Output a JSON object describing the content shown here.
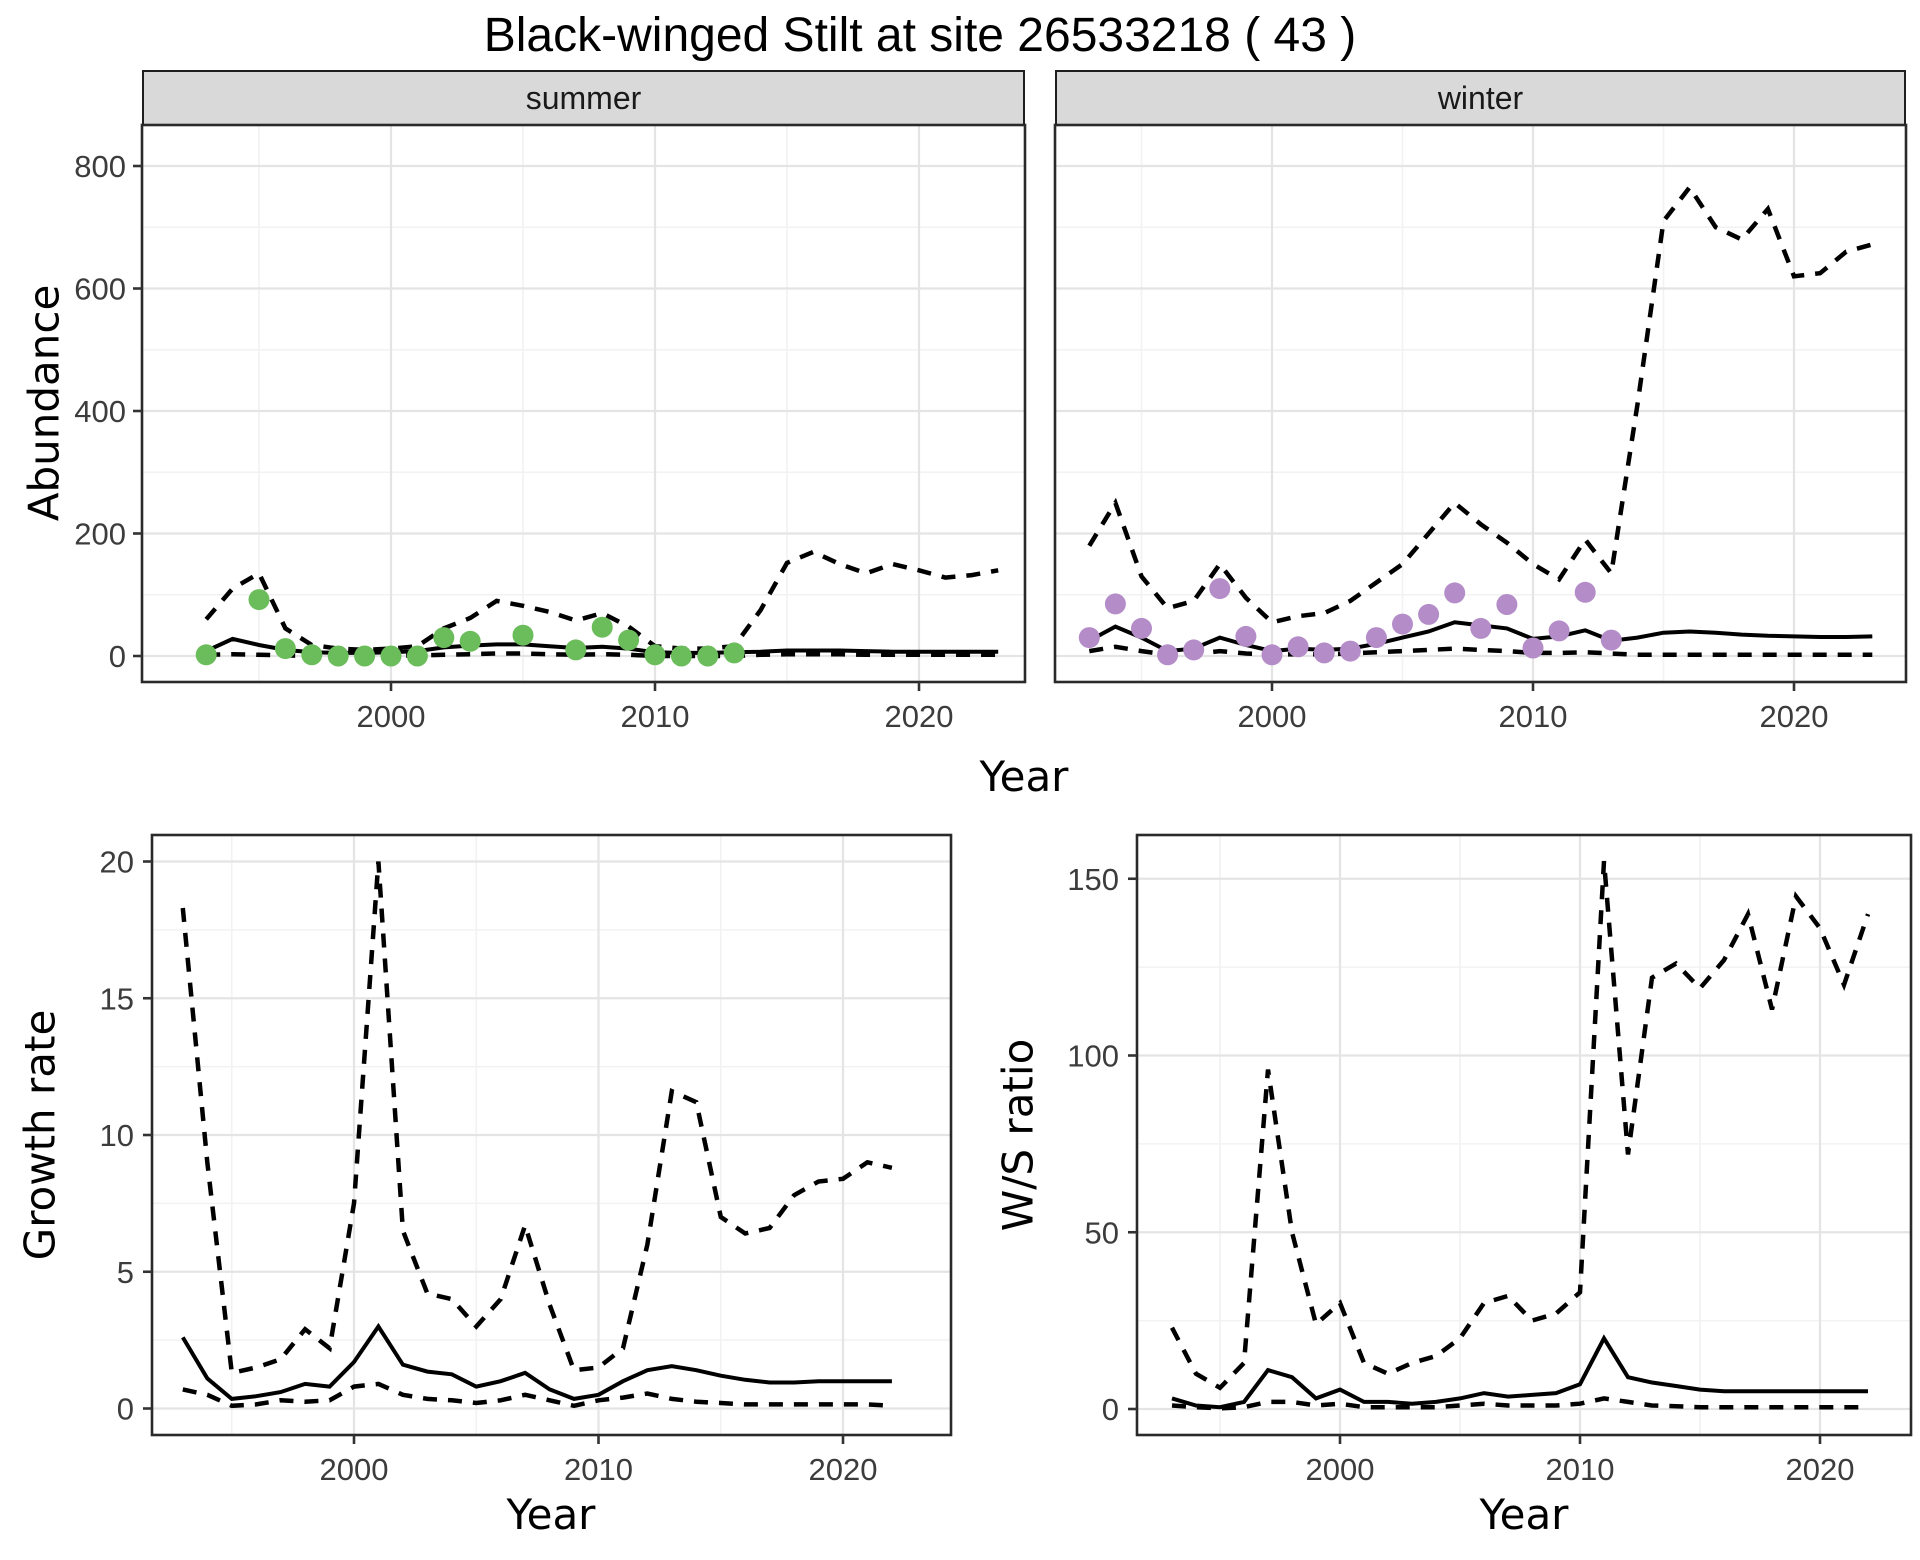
{
  "page": {
    "title": "Black-winged Stilt at site 26533218 ( 43 )"
  },
  "colors": {
    "summer_points": "#6BBD5B",
    "winter_points": "#B48CC8",
    "line": "#000000",
    "strip_bg": "#D9D9D9",
    "grid_major": "#E4E4E4",
    "grid_minor": "#F2F2F2",
    "panel_border": "#2A2A2A",
    "tick_text": "#3C3C3C"
  },
  "top_row": {
    "ylabel": "Abundance",
    "xlabel": "Year",
    "facets": [
      {
        "label": "summer"
      },
      {
        "label": "winter"
      }
    ]
  },
  "bottom_row": {
    "growth": {
      "ylabel": "Growth rate",
      "xlabel": "Year"
    },
    "ws": {
      "ylabel": "W/S ratio",
      "xlabel": "Year"
    }
  },
  "chart_data": [
    {
      "id": "summer",
      "type": "line",
      "facet": "summer",
      "xlabel": "Year",
      "ylabel": "Abundance",
      "x_ticks": [
        2000,
        2010,
        2020
      ],
      "y_ticks": [
        0,
        200,
        400,
        600,
        800
      ],
      "xlim": [
        1991,
        2024.5
      ],
      "ylim": [
        -40,
        880
      ],
      "x": [
        1993,
        1994,
        1995,
        1996,
        1997,
        1998,
        1999,
        2000,
        2001,
        2002,
        2003,
        2004,
        2005,
        2006,
        2007,
        2008,
        2009,
        2010,
        2011,
        2012,
        2013,
        2014,
        2015,
        2016,
        2017,
        2018,
        2019,
        2020,
        2021,
        2022,
        2023
      ],
      "series": [
        {
          "name": "median",
          "style": "solid",
          "values": [
            8,
            28,
            18,
            10,
            6,
            5,
            5,
            6,
            8,
            14,
            17,
            19,
            19,
            16,
            13,
            15,
            12,
            6,
            5,
            5,
            6,
            7,
            9,
            9,
            9,
            8,
            7,
            7,
            7,
            7,
            7
          ]
        },
        {
          "name": "ci_upper",
          "style": "dashed",
          "values": [
            60,
            110,
            135,
            45,
            18,
            12,
            10,
            12,
            16,
            45,
            62,
            90,
            82,
            72,
            58,
            70,
            48,
            16,
            12,
            12,
            16,
            75,
            152,
            170,
            150,
            135,
            150,
            140,
            128,
            132,
            140
          ]
        },
        {
          "name": "ci_lower",
          "style": "dashed",
          "values": [
            2,
            3,
            2,
            1,
            0,
            0,
            0,
            0,
            1,
            2,
            3,
            4,
            4,
            3,
            2,
            3,
            2,
            0,
            0,
            0,
            0,
            2,
            3,
            3,
            3,
            2,
            2,
            2,
            2,
            2,
            2
          ]
        }
      ],
      "points": {
        "name": "observed_counts",
        "color": "#6BBD5B",
        "x": [
          1993,
          1995,
          1996,
          1997,
          1998,
          1999,
          2000,
          2001,
          2002,
          2003,
          2005,
          2007,
          2008,
          2009,
          2010,
          2011,
          2012,
          2013
        ],
        "y": [
          2,
          92,
          12,
          2,
          0,
          0,
          0,
          0,
          30,
          24,
          34,
          10,
          47,
          26,
          2,
          0,
          0,
          5
        ]
      }
    },
    {
      "id": "winter",
      "type": "line",
      "facet": "winter",
      "xlabel": "Year",
      "ylabel": "Abundance",
      "x_ticks": [
        2000,
        2010,
        2020
      ],
      "y_ticks": [
        0,
        200,
        400,
        600,
        800
      ],
      "xlim": [
        1991.7,
        2024.3
      ],
      "ylim": [
        -40,
        880
      ],
      "x": [
        1993,
        1994,
        1995,
        1996,
        1997,
        1998,
        1999,
        2000,
        2001,
        2002,
        2003,
        2004,
        2005,
        2006,
        2007,
        2008,
        2009,
        2010,
        2011,
        2012,
        2013,
        2014,
        2015,
        2016,
        2017,
        2018,
        2019,
        2020,
        2021,
        2022,
        2023
      ],
      "series": [
        {
          "name": "median",
          "style": "solid",
          "values": [
            25,
            48,
            30,
            8,
            12,
            30,
            18,
            8,
            12,
            10,
            12,
            20,
            30,
            40,
            55,
            50,
            45,
            28,
            32,
            42,
            25,
            30,
            38,
            40,
            38,
            35,
            33,
            32,
            31,
            31,
            32
          ]
        },
        {
          "name": "ci_upper",
          "style": "dashed",
          "values": [
            180,
            250,
            130,
            78,
            90,
            150,
            95,
            55,
            65,
            70,
            90,
            120,
            150,
            200,
            250,
            215,
            185,
            150,
            125,
            190,
            135,
            410,
            710,
            765,
            700,
            680,
            730,
            620,
            625,
            660,
            672
          ]
        },
        {
          "name": "ci_lower",
          "style": "dashed",
          "values": [
            8,
            15,
            8,
            2,
            3,
            8,
            4,
            2,
            3,
            3,
            4,
            6,
            8,
            10,
            12,
            10,
            8,
            5,
            5,
            6,
            4,
            2,
            2,
            2,
            2,
            2,
            2,
            2,
            2,
            2,
            2
          ]
        }
      ],
      "points": {
        "name": "observed_counts",
        "color": "#B48CC8",
        "x": [
          1993,
          1994,
          1995,
          1996,
          1997,
          1998,
          1999,
          2000,
          2001,
          2002,
          2003,
          2004,
          2005,
          2006,
          2007,
          2008,
          2009,
          2010,
          2011,
          2012,
          2013
        ],
        "y": [
          30,
          85,
          45,
          2,
          10,
          110,
          32,
          2,
          15,
          5,
          8,
          30,
          52,
          68,
          103,
          45,
          84,
          13,
          41,
          104,
          26
        ]
      }
    },
    {
      "id": "growth",
      "type": "line",
      "xlabel": "Year",
      "ylabel": "Growth rate",
      "x_ticks": [
        2000,
        2010,
        2020
      ],
      "y_ticks": [
        0,
        5,
        10,
        15,
        20
      ],
      "xlim": [
        1991.7,
        2024.4
      ],
      "ylim": [
        -1,
        21
      ],
      "x": [
        1993,
        1994,
        1995,
        1996,
        1997,
        1998,
        1999,
        2000,
        2001,
        2002,
        2003,
        2004,
        2005,
        2006,
        2007,
        2008,
        2009,
        2010,
        2011,
        2012,
        2013,
        2014,
        2015,
        2016,
        2017,
        2018,
        2019,
        2020,
        2021,
        2022
      ],
      "series": [
        {
          "name": "median",
          "style": "solid",
          "values": [
            2.6,
            1.1,
            0.35,
            0.45,
            0.6,
            0.9,
            0.8,
            1.7,
            3,
            1.6,
            1.35,
            1.25,
            0.8,
            1,
            1.3,
            0.7,
            0.35,
            0.5,
            1,
            1.4,
            1.55,
            1.4,
            1.2,
            1.05,
            0.95,
            0.95,
            1,
            1,
            1,
            1
          ]
        },
        {
          "name": "ci_upper",
          "style": "dashed",
          "values": [
            18.3,
            9,
            1.3,
            1.5,
            1.8,
            2.9,
            2.2,
            7.5,
            20,
            6.5,
            4.2,
            4,
            3,
            4,
            6.7,
            3.8,
            1.4,
            1.5,
            2.2,
            6,
            11.6,
            11.2,
            7,
            6.4,
            6.6,
            7.8,
            8.3,
            8.4,
            9,
            8.8
          ]
        },
        {
          "name": "ci_lower",
          "style": "dashed",
          "values": [
            0.7,
            0.5,
            0.1,
            0.15,
            0.3,
            0.25,
            0.3,
            0.8,
            0.9,
            0.5,
            0.35,
            0.3,
            0.2,
            0.3,
            0.5,
            0.3,
            0.1,
            0.3,
            0.4,
            0.55,
            0.35,
            0.25,
            0.2,
            0.15,
            0.15,
            0.15,
            0.15,
            0.15,
            0.15,
            0.1
          ]
        }
      ]
    },
    {
      "id": "ws",
      "type": "line",
      "xlabel": "Year",
      "ylabel": "W/S ratio",
      "x_ticks": [
        2000,
        2010,
        2020
      ],
      "y_ticks": [
        0,
        50,
        100,
        150
      ],
      "xlim": [
        1991.5,
        2023.8
      ],
      "ylim": [
        -8,
        162
      ],
      "x": [
        1993,
        1994,
        1995,
        1996,
        1997,
        1998,
        1999,
        2000,
        2001,
        2002,
        2003,
        2004,
        2005,
        2006,
        2007,
        2008,
        2009,
        2010,
        2011,
        2012,
        2013,
        2014,
        2015,
        2016,
        2017,
        2018,
        2019,
        2020,
        2021,
        2022
      ],
      "series": [
        {
          "name": "median",
          "style": "solid",
          "values": [
            3,
            1,
            0.5,
            2,
            11,
            9,
            3,
            5.5,
            2,
            2,
            1.5,
            2,
            3,
            4.5,
            3.5,
            4,
            4.5,
            7,
            20,
            9,
            7.5,
            6.5,
            5.5,
            5,
            5,
            5,
            5,
            5,
            5,
            5
          ]
        },
        {
          "name": "ci_upper",
          "style": "dashed",
          "values": [
            23,
            10,
            6,
            13,
            96,
            50,
            24,
            30,
            13,
            10,
            13,
            15,
            20,
            30,
            32,
            25,
            27,
            33,
            155,
            72,
            122,
            126,
            119,
            127,
            140,
            113,
            145,
            136,
            120,
            140
          ]
        },
        {
          "name": "ci_lower",
          "style": "dashed",
          "values": [
            1,
            0.5,
            0.2,
            0.5,
            2,
            2,
            1,
            1.5,
            0.5,
            0.5,
            0.5,
            0.5,
            1,
            1.5,
            1,
            1,
            1,
            1.5,
            3,
            2,
            1,
            0.8,
            0.5,
            0.5,
            0.5,
            0.5,
            0.5,
            0.5,
            0.5,
            0.5
          ]
        }
      ]
    }
  ]
}
